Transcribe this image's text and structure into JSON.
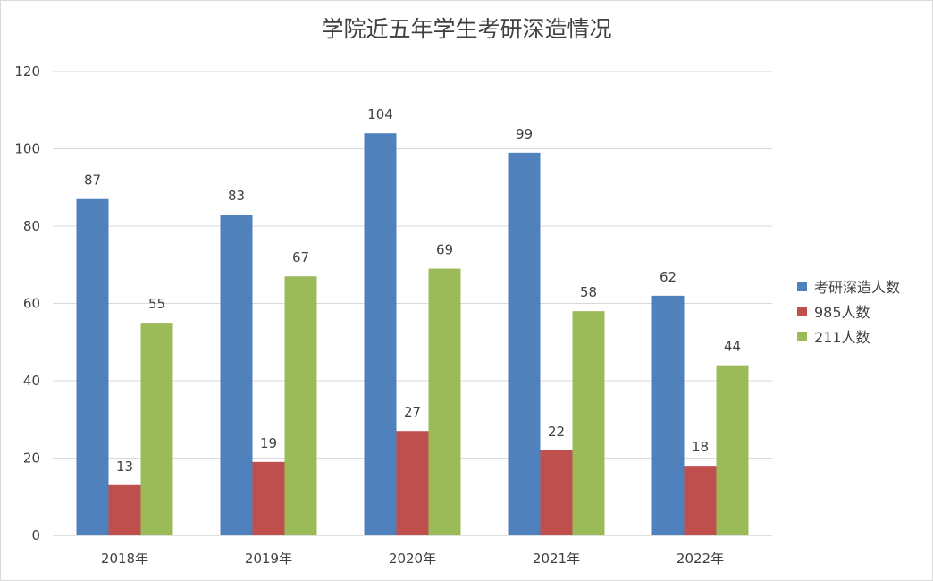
{
  "chart_data": {
    "type": "bar",
    "title": "学院近五年学生考研深造情况",
    "categories": [
      "2018年",
      "2019年",
      "2020年",
      "2021年",
      "2022年"
    ],
    "series": [
      {
        "name": "考研深造人数",
        "color": "#4f81bd",
        "values": [
          87,
          83,
          104,
          99,
          62
        ]
      },
      {
        "name": "985人数",
        "color": "#c0504d",
        "values": [
          13,
          19,
          27,
          22,
          18
        ]
      },
      {
        "name": "211人数",
        "color": "#9bbb59",
        "values": [
          55,
          67,
          69,
          58,
          44
        ]
      }
    ],
    "ylim": [
      0,
      120
    ],
    "yticks": [
      0,
      20,
      40,
      60,
      80,
      100,
      120
    ],
    "grid": true,
    "legend_position": "right"
  }
}
